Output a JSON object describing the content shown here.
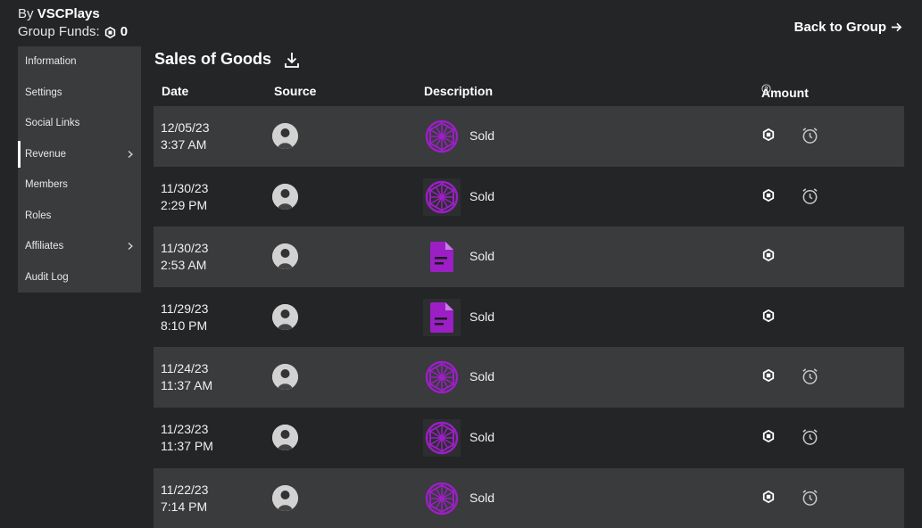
{
  "header": {
    "by_prefix": "By",
    "group_name": "VSCPlays",
    "funds_label": "Group Funds:",
    "funds_value": "0",
    "back_label": "Back to Group"
  },
  "sidebar": {
    "items": [
      {
        "label": "Information"
      },
      {
        "label": "Settings"
      },
      {
        "label": "Social Links"
      },
      {
        "label": "Revenue"
      },
      {
        "label": "Members"
      },
      {
        "label": "Roles"
      },
      {
        "label": "Affiliates"
      },
      {
        "label": "Audit Log"
      }
    ]
  },
  "main": {
    "title": "Sales of Goods",
    "columns": [
      "Date",
      "Source",
      "Description",
      "Amount"
    ]
  },
  "rows": [
    {
      "date": "12/05/23",
      "time": "3:37 AM",
      "description": "Sold",
      "thumb": "gem-icon",
      "pending": true
    },
    {
      "date": "11/30/23",
      "time": "2:29 PM",
      "description": "Sold",
      "thumb": "gem-icon",
      "pending": true
    },
    {
      "date": "11/30/23",
      "time": "2:53 AM",
      "description": "Sold",
      "thumb": "document-icon",
      "pending": false
    },
    {
      "date": "11/29/23",
      "time": "8:10 PM",
      "description": "Sold",
      "thumb": "document-icon",
      "pending": false
    },
    {
      "date": "11/24/23",
      "time": "11:37 AM",
      "description": "Sold",
      "thumb": "gem-icon",
      "pending": true
    },
    {
      "date": "11/23/23",
      "time": "11:37 PM",
      "description": "Sold",
      "thumb": "gem-icon",
      "pending": true
    },
    {
      "date": "11/22/23",
      "time": "7:14 PM",
      "description": "Sold",
      "thumb": "gem-icon",
      "pending": true
    }
  ],
  "colors": {
    "background": "#232527",
    "panel": "#393b3d",
    "accent_purple": "#9b1fc4",
    "text": "#ffffff"
  }
}
